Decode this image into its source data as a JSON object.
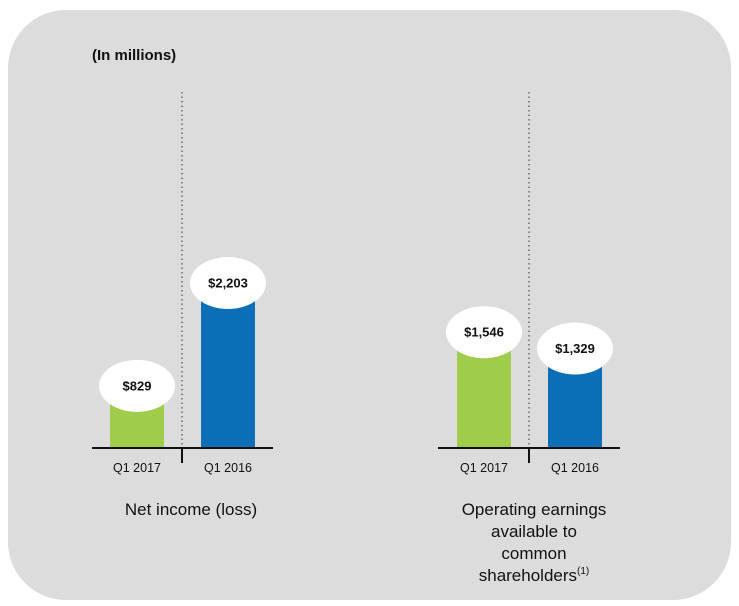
{
  "units_label": "(In millions)",
  "colors": {
    "q1_2017": "#9fcc4a",
    "q1_2016": "#0b6fb8",
    "bubble": "#ffffff"
  },
  "chart_data": [
    {
      "type": "bar",
      "title_lines": [
        "Net income (loss)"
      ],
      "categories": [
        "Q1 2017",
        "Q1 2016"
      ],
      "values": [
        829,
        2203
      ],
      "value_labels": [
        "$829",
        "$2,203"
      ],
      "ylim": [
        0,
        2203
      ]
    },
    {
      "type": "bar",
      "title_lines": [
        "Operating earnings",
        "available to",
        "common",
        "shareholders"
      ],
      "title_footnote": "(1)",
      "categories": [
        "Q1 2017",
        "Q1 2016"
      ],
      "values": [
        1546,
        1329
      ],
      "value_labels": [
        "$1,546",
        "$1,329"
      ],
      "ylim": [
        0,
        2203
      ]
    }
  ]
}
